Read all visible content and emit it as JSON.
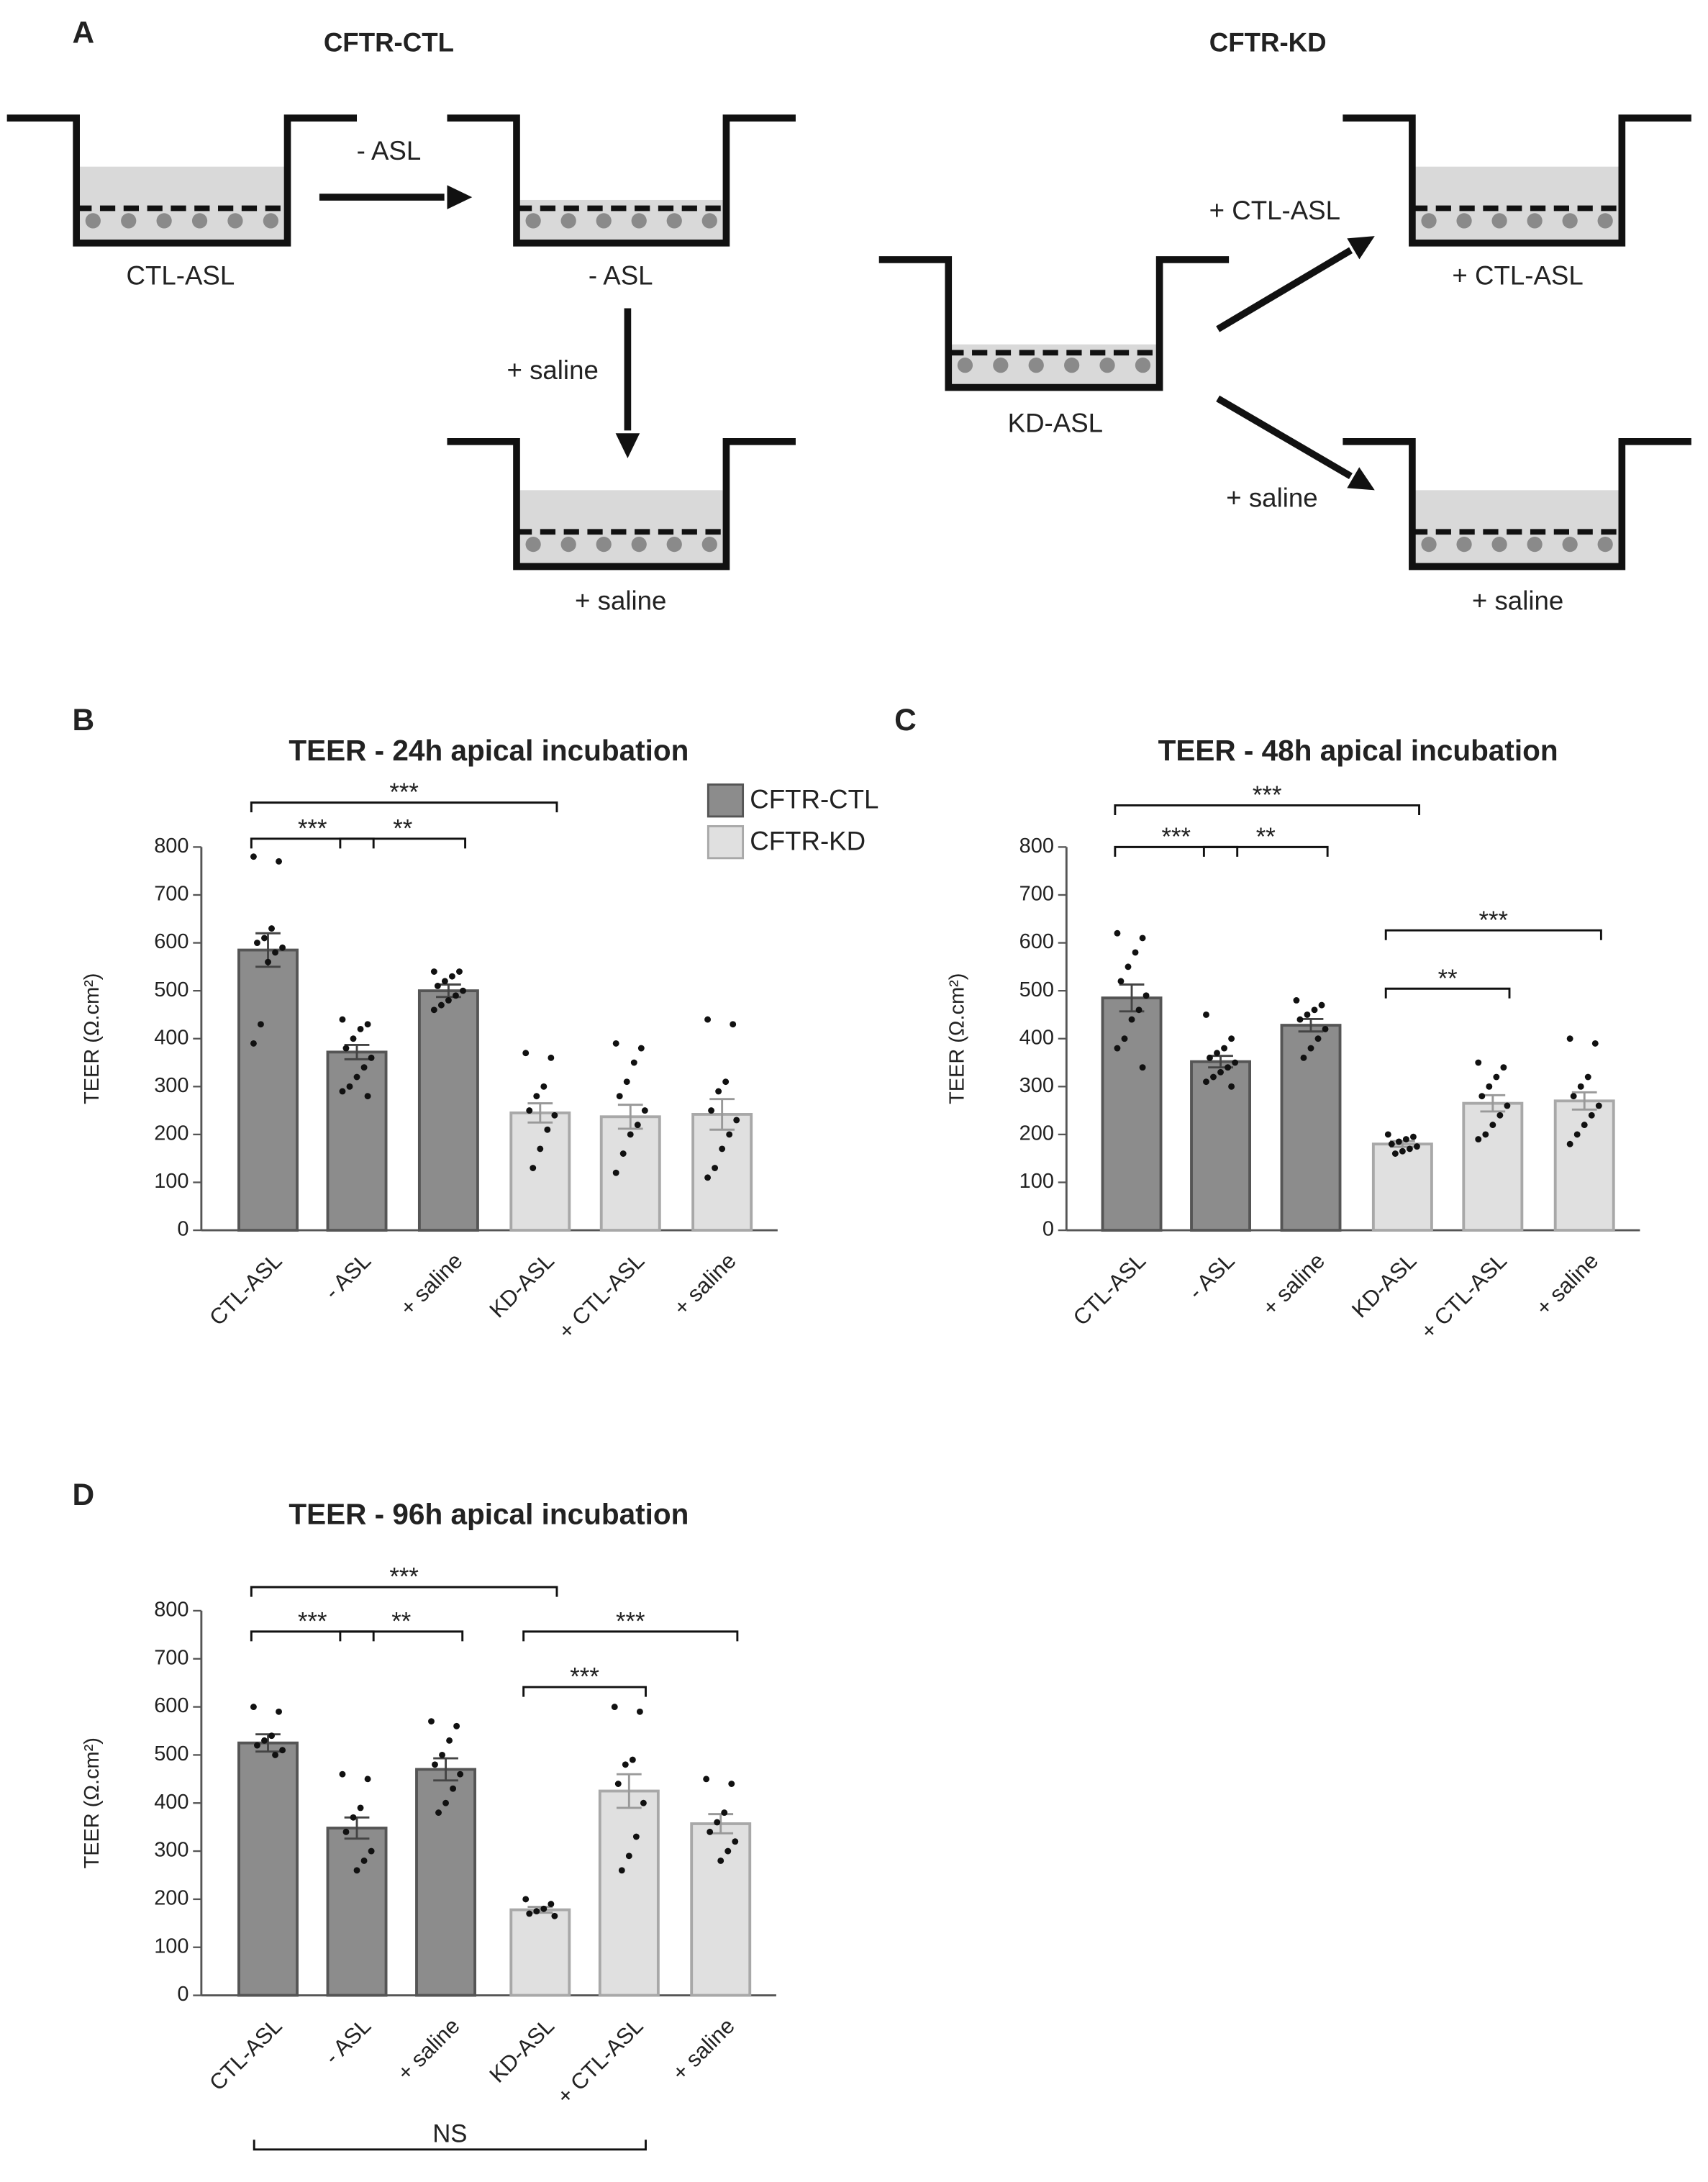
{
  "panel_a": {
    "label": "A",
    "groups": [
      "CFTR-CTL",
      "CFTR-KD"
    ],
    "wells": [
      "CTL-ASL",
      "- ASL",
      "+ saline",
      "KD-ASL",
      "+ CTL-ASL",
      "+ saline"
    ],
    "arrows": [
      "- ASL",
      "+ saline",
      "+ CTL-ASL",
      "+ saline"
    ]
  },
  "chart_data": [
    {
      "type": "bar",
      "panel": "B",
      "title": "TEER - 24h apical incubation",
      "y_label": "TEER (Ω.cm²)",
      "categories": [
        "CTL-ASL",
        "- ASL",
        "+ saline",
        "KD-ASL",
        "+ CTL-ASL",
        "+ saline"
      ],
      "series": [
        {
          "name": "CFTR-CTL",
          "color": "#8c8c8c",
          "values": [
            585,
            372,
            500,
            null,
            null,
            null
          ],
          "errors": [
            35,
            15,
            13,
            null,
            null,
            null
          ]
        },
        {
          "name": "CFTR-KD",
          "color": "#e0e0e0",
          "values": [
            null,
            null,
            null,
            245,
            237,
            242
          ],
          "errors": [
            null,
            null,
            null,
            20,
            25,
            32
          ]
        }
      ],
      "points": [
        [
          780,
          770,
          630,
          610,
          600,
          590,
          580,
          560,
          430,
          390
        ],
        [
          440,
          430,
          420,
          400,
          380,
          360,
          340,
          320,
          300,
          290,
          280
        ],
        [
          540,
          540,
          530,
          520,
          510,
          500,
          490,
          480,
          470,
          460
        ],
        [
          370,
          360,
          300,
          280,
          250,
          240,
          210,
          170,
          130
        ],
        [
          390,
          380,
          350,
          310,
          280,
          250,
          220,
          200,
          160,
          120
        ],
        [
          440,
          430,
          310,
          290,
          250,
          230,
          200,
          170,
          130,
          110
        ]
      ],
      "annotations": [
        "***",
        "***",
        "**"
      ],
      "ylim": [
        0,
        800
      ],
      "yticks": [
        0,
        100,
        200,
        300,
        400,
        500,
        600,
        700,
        800
      ],
      "legend": true
    },
    {
      "type": "bar",
      "panel": "C",
      "title": "TEER - 48h apical incubation",
      "y_label": "TEER (Ω.cm²)",
      "categories": [
        "CTL-ASL",
        "- ASL",
        "+ saline",
        "KD-ASL",
        "+ CTL-ASL",
        "+ saline"
      ],
      "series": [
        {
          "color": "#8c8c8c",
          "values": [
            485,
            352,
            428,
            null,
            null,
            null
          ],
          "errors": [
            28,
            12,
            13,
            null,
            null,
            null
          ]
        },
        {
          "color": "#e0e0e0",
          "values": [
            null,
            null,
            null,
            180,
            265,
            270
          ],
          "errors": [
            null,
            null,
            null,
            6,
            17,
            18
          ]
        }
      ],
      "points": [
        [
          620,
          610,
          580,
          550,
          520,
          490,
          460,
          440,
          400,
          380,
          340
        ],
        [
          450,
          400,
          380,
          370,
          360,
          350,
          340,
          330,
          320,
          310,
          300
        ],
        [
          480,
          470,
          460,
          450,
          440,
          420,
          400,
          380,
          360
        ],
        [
          200,
          195,
          190,
          185,
          180,
          175,
          170,
          165,
          160
        ],
        [
          350,
          340,
          320,
          300,
          280,
          260,
          240,
          220,
          200,
          190
        ],
        [
          400,
          390,
          320,
          300,
          280,
          260,
          240,
          220,
          200,
          180
        ]
      ],
      "annotations": [
        "***",
        "***",
        "**",
        "***",
        "**"
      ],
      "ylim": [
        0,
        800
      ],
      "yticks": [
        0,
        100,
        200,
        300,
        400,
        500,
        600,
        700,
        800
      ],
      "legend": false
    },
    {
      "type": "bar",
      "panel": "D",
      "title": "TEER - 96h apical incubation",
      "y_label": "TEER (Ω.cm²)",
      "categories": [
        "CTL-ASL",
        "- ASL",
        "+ saline",
        "KD-ASL",
        "+ CTL-ASL",
        "+ saline"
      ],
      "series": [
        {
          "color": "#8c8c8c",
          "values": [
            525,
            348,
            470,
            null,
            null,
            null
          ],
          "errors": [
            18,
            22,
            23,
            null,
            null,
            null
          ]
        },
        {
          "color": "#e0e0e0",
          "values": [
            null,
            null,
            null,
            178,
            425,
            357
          ],
          "errors": [
            null,
            null,
            null,
            6,
            35,
            20
          ]
        }
      ],
      "points": [
        [
          600,
          590,
          540,
          530,
          520,
          510,
          500
        ],
        [
          460,
          450,
          390,
          370,
          340,
          300,
          280,
          260
        ],
        [
          570,
          560,
          530,
          500,
          480,
          460,
          430,
          400,
          380
        ],
        [
          200,
          190,
          180,
          175,
          170,
          165
        ],
        [
          600,
          590,
          490,
          480,
          440,
          400,
          330,
          290,
          260
        ],
        [
          450,
          440,
          380,
          360,
          340,
          320,
          300,
          280
        ]
      ],
      "annotations": [
        "***",
        "***",
        "**",
        "***",
        "***",
        "NS"
      ],
      "ylim": [
        0,
        800
      ],
      "yticks": [
        0,
        100,
        200,
        300,
        400,
        500,
        600,
        700,
        800
      ],
      "legend": false
    }
  ]
}
